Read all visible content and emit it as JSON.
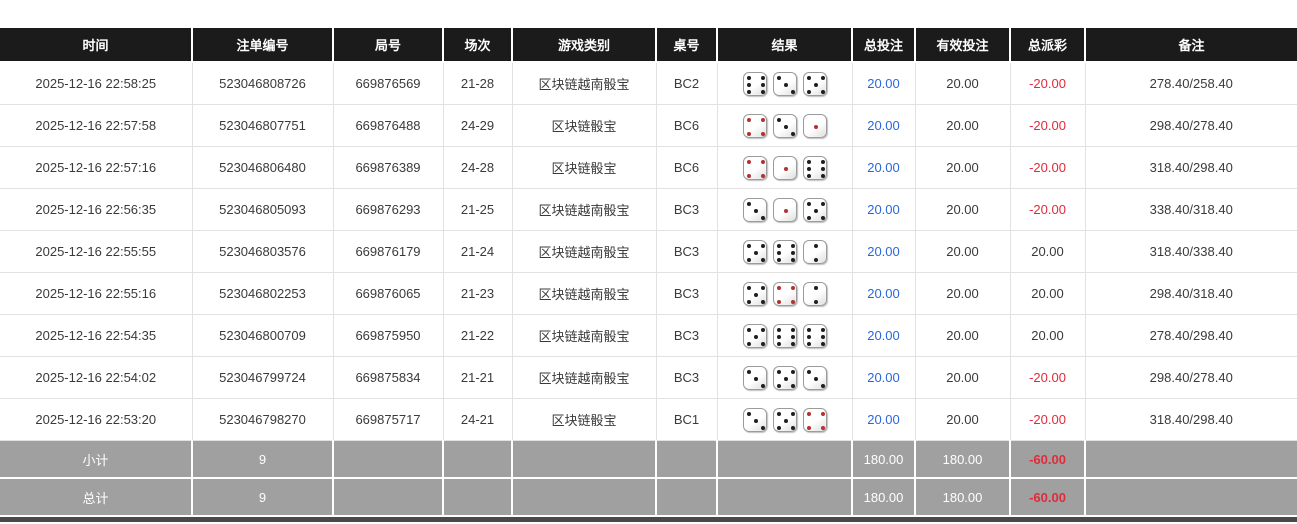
{
  "table": {
    "columns": [
      {
        "key": "time",
        "label": "时间"
      },
      {
        "key": "bet_id",
        "label": "注单编号"
      },
      {
        "key": "round_id",
        "label": "局号"
      },
      {
        "key": "session",
        "label": "场次"
      },
      {
        "key": "game_type",
        "label": "游戏类别"
      },
      {
        "key": "table_no",
        "label": "桌号"
      },
      {
        "key": "result",
        "label": "结果"
      },
      {
        "key": "total_bet",
        "label": "总投注"
      },
      {
        "key": "valid_bet",
        "label": "有效投注"
      },
      {
        "key": "total_payout",
        "label": "总派彩"
      },
      {
        "key": "remark",
        "label": "备注"
      }
    ],
    "rows": [
      {
        "time": "2025-12-16 22:58:25",
        "bet_id": "523046808726",
        "round_id": "669876569",
        "session": "21-28",
        "game_type": "区块链越南骰宝",
        "table_no": "BC2",
        "dice": [
          6,
          3,
          5
        ],
        "total_bet": "20.00",
        "valid_bet": "20.00",
        "total_payout": "-20.00",
        "remark": "278.40/258.40"
      },
      {
        "time": "2025-12-16 22:57:58",
        "bet_id": "523046807751",
        "round_id": "669876488",
        "session": "24-29",
        "game_type": "区块链骰宝",
        "table_no": "BC6",
        "dice": [
          4,
          3,
          1
        ],
        "total_bet": "20.00",
        "valid_bet": "20.00",
        "total_payout": "-20.00",
        "remark": "298.40/278.40"
      },
      {
        "time": "2025-12-16 22:57:16",
        "bet_id": "523046806480",
        "round_id": "669876389",
        "session": "24-28",
        "game_type": "区块链骰宝",
        "table_no": "BC6",
        "dice": [
          4,
          1,
          6
        ],
        "total_bet": "20.00",
        "valid_bet": "20.00",
        "total_payout": "-20.00",
        "remark": "318.40/298.40"
      },
      {
        "time": "2025-12-16 22:56:35",
        "bet_id": "523046805093",
        "round_id": "669876293",
        "session": "21-25",
        "game_type": "区块链越南骰宝",
        "table_no": "BC3",
        "dice": [
          3,
          1,
          5
        ],
        "total_bet": "20.00",
        "valid_bet": "20.00",
        "total_payout": "-20.00",
        "remark": "338.40/318.40"
      },
      {
        "time": "2025-12-16 22:55:55",
        "bet_id": "523046803576",
        "round_id": "669876179",
        "session": "21-24",
        "game_type": "区块链越南骰宝",
        "table_no": "BC3",
        "dice": [
          5,
          6,
          2
        ],
        "total_bet": "20.00",
        "valid_bet": "20.00",
        "total_payout": "20.00",
        "remark": "318.40/338.40"
      },
      {
        "time": "2025-12-16 22:55:16",
        "bet_id": "523046802253",
        "round_id": "669876065",
        "session": "21-23",
        "game_type": "区块链越南骰宝",
        "table_no": "BC3",
        "dice": [
          5,
          4,
          2
        ],
        "total_bet": "20.00",
        "valid_bet": "20.00",
        "total_payout": "20.00",
        "remark": "298.40/318.40"
      },
      {
        "time": "2025-12-16 22:54:35",
        "bet_id": "523046800709",
        "round_id": "669875950",
        "session": "21-22",
        "game_type": "区块链越南骰宝",
        "table_no": "BC3",
        "dice": [
          5,
          6,
          6
        ],
        "total_bet": "20.00",
        "valid_bet": "20.00",
        "total_payout": "20.00",
        "remark": "278.40/298.40"
      },
      {
        "time": "2025-12-16 22:54:02",
        "bet_id": "523046799724",
        "round_id": "669875834",
        "session": "21-21",
        "game_type": "区块链越南骰宝",
        "table_no": "BC3",
        "dice": [
          3,
          5,
          3
        ],
        "total_bet": "20.00",
        "valid_bet": "20.00",
        "total_payout": "-20.00",
        "remark": "298.40/278.40"
      },
      {
        "time": "2025-12-16 22:53:20",
        "bet_id": "523046798270",
        "round_id": "669875717",
        "session": "24-21",
        "game_type": "区块链骰宝",
        "table_no": "BC1",
        "dice": [
          3,
          5,
          4
        ],
        "total_bet": "20.00",
        "valid_bet": "20.00",
        "total_payout": "-20.00",
        "remark": "318.40/298.40"
      }
    ],
    "summary_rows": [
      {
        "label": "小计",
        "count": "9",
        "total_bet": "180.00",
        "valid_bet": "180.00",
        "total_payout": "-60.00"
      },
      {
        "label": "总计",
        "count": "9",
        "total_bet": "180.00",
        "valid_bet": "180.00",
        "total_payout": "-60.00"
      }
    ]
  },
  "dice_red_values": [
    1,
    4
  ],
  "colors": {
    "header_bg": "#1b1b1b",
    "summary_bg": "#a0a0a0",
    "bet_blue": "#2a68d8",
    "payout_red": "#e02b3c",
    "dice_black_pip": "#1f1f1f",
    "dice_red_pip": "#b53131"
  }
}
